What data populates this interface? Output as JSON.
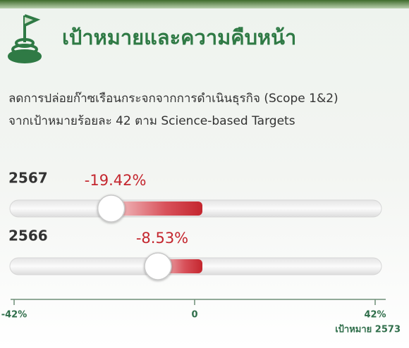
{
  "header": {
    "title": "เป้าหมายและความคืบหน้า"
  },
  "description": [
    "ลดการปล่อยก๊าซเรือนกระจกจากการดำเนินธุรกิจ (Scope 1&2)",
    "จากเป้าหมายร้อยละ 42 ตาม Science-based Targets"
  ],
  "chart_data": {
    "type": "slider",
    "categories": [
      "2567",
      "2566"
    ],
    "values": [
      -19.42,
      -8.53
    ],
    "value_labels": [
      "-19.42%",
      "-8.53%"
    ],
    "xlim": [
      -42,
      42
    ],
    "xticks": [
      {
        "value": -42,
        "label": "-42%"
      },
      0,
      {
        "value": 42,
        "label": "42%"
      }
    ],
    "note": "เป้าหมาย 2573",
    "color": "#c4262e"
  }
}
